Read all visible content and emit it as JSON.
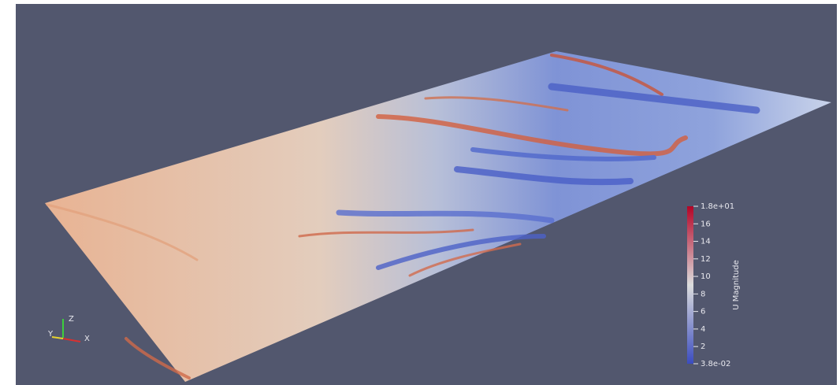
{
  "colorbar": {
    "title": "U Magnitude",
    "range": [
      0.038,
      18
    ],
    "ticks": [
      {
        "value": 18,
        "label": "1.8e+01"
      },
      16,
      14,
      12,
      10,
      8,
      6,
      4,
      2,
      {
        "value": 0.038,
        "label": "3.8e-02"
      }
    ],
    "colors": [
      "#3b4cc0",
      "#dcdddd",
      "#b40426"
    ]
  },
  "axes": {
    "x": "X",
    "y": "Y",
    "z": "Z"
  }
}
